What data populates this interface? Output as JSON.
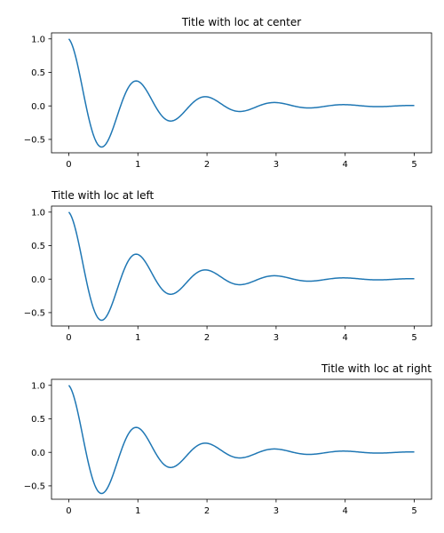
{
  "chart_data": [
    {
      "type": "line",
      "title": "Title with loc at center",
      "title_loc": "center",
      "function": "cos(2*pi*t) * exp(-t)",
      "x_range": [
        0,
        5
      ],
      "xlim": [
        -0.25,
        5.25
      ],
      "ylim": [
        -0.7,
        1.09
      ],
      "xticks": [
        0,
        1,
        2,
        3,
        4,
        5
      ],
      "yticks": [
        -0.5,
        0.0,
        0.5,
        1.0
      ],
      "xtick_labels": [
        "0",
        "1",
        "2",
        "3",
        "4",
        "5"
      ],
      "ytick_labels": [
        "−0.5",
        "0.0",
        "0.5",
        "1.0"
      ],
      "grid": false,
      "color": "#1f77b4"
    },
    {
      "type": "line",
      "title": "Title with loc at left",
      "title_loc": "left",
      "function": "cos(2*pi*t) * exp(-t)",
      "x_range": [
        0,
        5
      ],
      "xlim": [
        -0.25,
        5.25
      ],
      "ylim": [
        -0.7,
        1.09
      ],
      "xticks": [
        0,
        1,
        2,
        3,
        4,
        5
      ],
      "yticks": [
        -0.5,
        0.0,
        0.5,
        1.0
      ],
      "xtick_labels": [
        "0",
        "1",
        "2",
        "3",
        "4",
        "5"
      ],
      "ytick_labels": [
        "−0.5",
        "0.0",
        "0.5",
        "1.0"
      ],
      "grid": false,
      "color": "#1f77b4"
    },
    {
      "type": "line",
      "title": "Title with loc at right",
      "title_loc": "right",
      "function": "cos(2*pi*t) * exp(-t)",
      "x_range": [
        0,
        5
      ],
      "xlim": [
        -0.25,
        5.25
      ],
      "ylim": [
        -0.7,
        1.09
      ],
      "xticks": [
        0,
        1,
        2,
        3,
        4,
        5
      ],
      "yticks": [
        -0.5,
        0.0,
        0.5,
        1.0
      ],
      "xtick_labels": [
        "0",
        "1",
        "2",
        "3",
        "4",
        "5"
      ],
      "ytick_labels": [
        "−0.5",
        "0.0",
        "0.5",
        "1.0"
      ],
      "grid": false,
      "color": "#1f77b4"
    }
  ]
}
